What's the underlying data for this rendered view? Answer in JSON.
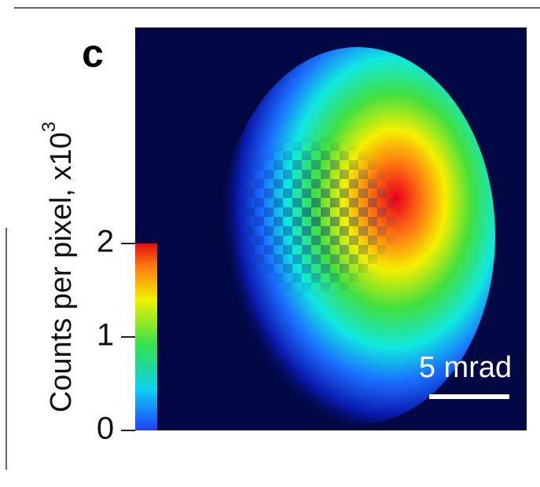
{
  "chart_data": {
    "type": "heatmap",
    "panel_label": "c",
    "colorbar_label": "Counts per pixel, x10",
    "colorbar_label_exponent": "3",
    "colorbar_lim": [
      0,
      2
    ],
    "colorbar_ticks": [
      0,
      1,
      2
    ],
    "scale_bar_label": "5 mrad"
  }
}
